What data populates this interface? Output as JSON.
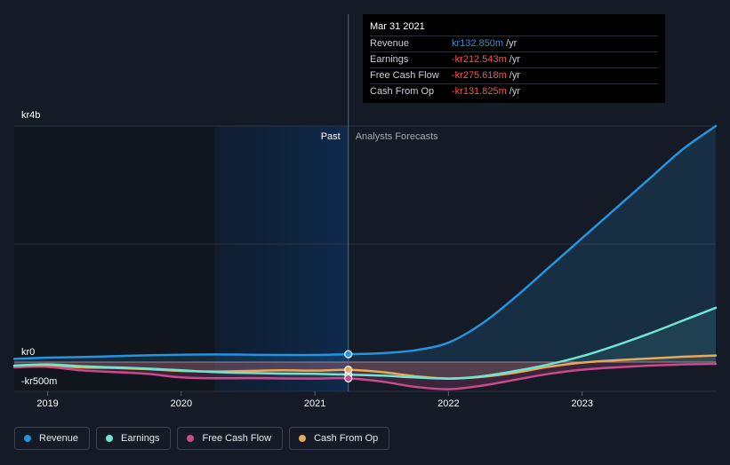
{
  "tooltip": {
    "date": "Mar 31 2021",
    "rows": [
      {
        "label": "Revenue",
        "value": "kr132.850m",
        "unit": "/yr",
        "color": "#2394df"
      },
      {
        "label": "Earnings",
        "value": "-kr212.543m",
        "unit": "/yr",
        "color": "#ff4d4d"
      },
      {
        "label": "Free Cash Flow",
        "value": "-kr275.618m",
        "unit": "/yr",
        "color": "#ff4d4d"
      },
      {
        "label": "Cash From Op",
        "value": "-kr131.825m",
        "unit": "/yr",
        "color": "#ff4d4d"
      }
    ]
  },
  "labels": {
    "past": "Past",
    "forecast": "Analysts Forecasts"
  },
  "legend": [
    {
      "label": "Revenue",
      "color": "#2394df"
    },
    {
      "label": "Earnings",
      "color": "#6ce5d2"
    },
    {
      "label": "Free Cash Flow",
      "color": "#c94a8e"
    },
    {
      "label": "Cash From Op",
      "color": "#e8a95a"
    }
  ],
  "chart_data": {
    "type": "line",
    "y_tick_labels": [
      {
        "value": 4000,
        "label": "kr4b"
      },
      {
        "value": 0,
        "label": "kr0"
      },
      {
        "value": -500,
        "label": "-kr500m"
      }
    ],
    "x_tick_labels": [
      {
        "value": 2019,
        "label": "2019"
      },
      {
        "value": 2020,
        "label": "2020"
      },
      {
        "value": 2021,
        "label": "2021"
      },
      {
        "value": 2022,
        "label": "2022"
      },
      {
        "value": 2023,
        "label": "2023"
      }
    ],
    "xlim": [
      2018.75,
      2024.0
    ],
    "ylim": [
      -500,
      4000
    ],
    "past_shade_start": 2020.25,
    "now": 2021.25,
    "series": [
      {
        "name": "Revenue",
        "color": "#2394df",
        "x": [
          2018.75,
          2019.0,
          2019.25,
          2019.5,
          2019.75,
          2020.0,
          2020.25,
          2020.5,
          2020.75,
          2021.0,
          2021.25,
          2021.5,
          2021.75,
          2022.0,
          2022.25,
          2022.5,
          2022.75,
          2023.0,
          2023.25,
          2023.5,
          2023.75,
          2024.0
        ],
        "y": [
          55,
          75,
          85,
          100,
          115,
          125,
          130,
          125,
          120,
          120,
          133,
          150,
          200,
          330,
          650,
          1100,
          1600,
          2100,
          2600,
          3100,
          3600,
          4000
        ]
      },
      {
        "name": "Earnings",
        "color": "#6ce5d2",
        "x": [
          2018.75,
          2019.0,
          2019.25,
          2019.5,
          2019.75,
          2020.0,
          2020.25,
          2020.5,
          2020.75,
          2021.0,
          2021.25,
          2021.5,
          2021.75,
          2022.0,
          2022.25,
          2022.5,
          2022.75,
          2023.0,
          2023.25,
          2023.5,
          2023.75,
          2024.0
        ],
        "y": [
          -60,
          -40,
          -70,
          -90,
          -110,
          -140,
          -170,
          -185,
          -195,
          -200,
          -213,
          -230,
          -260,
          -280,
          -240,
          -150,
          -40,
          100,
          280,
          480,
          700,
          920
        ]
      },
      {
        "name": "Free Cash Flow",
        "color": "#c94a8e",
        "x": [
          2018.75,
          2019.0,
          2019.25,
          2019.5,
          2019.75,
          2020.0,
          2020.25,
          2020.5,
          2020.75,
          2021.0,
          2021.25,
          2021.5,
          2021.75,
          2022.0,
          2022.25,
          2022.5,
          2022.75,
          2023.0,
          2023.25,
          2023.5,
          2023.75,
          2024.0
        ],
        "y": [
          -90,
          -80,
          -140,
          -170,
          -200,
          -260,
          -275,
          -272,
          -278,
          -280,
          -276,
          -330,
          -420,
          -460,
          -400,
          -300,
          -200,
          -130,
          -90,
          -60,
          -40,
          -30
        ]
      },
      {
        "name": "Cash From Op",
        "color": "#e8a95a",
        "x": [
          2018.75,
          2019.0,
          2019.25,
          2019.5,
          2019.75,
          2020.0,
          2020.25,
          2020.5,
          2020.75,
          2021.0,
          2021.25,
          2021.5,
          2021.75,
          2022.0,
          2022.25,
          2022.5,
          2022.75,
          2023.0,
          2023.25,
          2023.5,
          2023.75,
          2024.0
        ],
        "y": [
          -60,
          -50,
          -90,
          -100,
          -120,
          -150,
          -160,
          -150,
          -140,
          -145,
          -132,
          -170,
          -240,
          -280,
          -250,
          -180,
          -80,
          -10,
          30,
          60,
          90,
          110
        ]
      }
    ]
  }
}
